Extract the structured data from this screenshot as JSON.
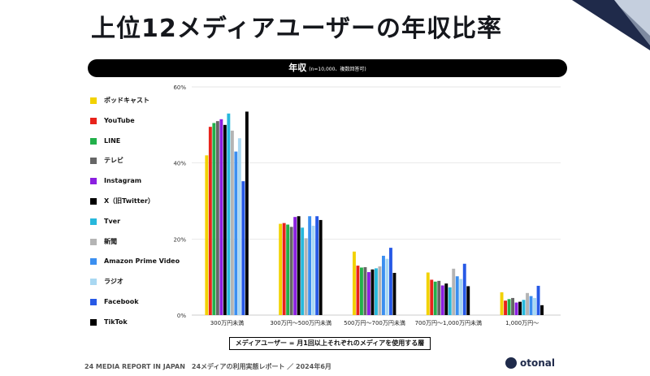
{
  "title": "上位12メディアユーザーの年収比率",
  "banner": {
    "main": "年収",
    "sub": "(n=10,000、複数回答可)"
  },
  "caption": "メディアユーザー = 月1回以上それぞれのメディアを使用する層",
  "footer": "24 MEDIA REPORT IN JAPAN　24メディアの利用実態レポート ／ 2024年6月",
  "brand": "otonal",
  "chart_data": {
    "type": "bar",
    "categories": [
      "300万円未満",
      "300万円〜500万円未満",
      "500万円〜700万円未満",
      "700万円〜1,000万円未満",
      "1,000万円〜"
    ],
    "yticks": [
      "0%",
      "20%",
      "40%",
      "60%"
    ],
    "ylim": [
      0,
      60
    ],
    "grid": true,
    "legend_position": "left",
    "series": [
      {
        "name": "ポッドキャスト",
        "color": "#f2d200",
        "values": [
          42,
          24,
          16.7,
          11.2,
          6
        ]
      },
      {
        "name": "YouTube",
        "color": "#e8231b",
        "values": [
          49.5,
          24.2,
          13,
          9.3,
          3.8
        ]
      },
      {
        "name": "LINE",
        "color": "#22b04a",
        "values": [
          50.5,
          23.8,
          12.5,
          8.8,
          4.2
        ]
      },
      {
        "name": "テレビ",
        "color": "#666666",
        "values": [
          51,
          23.2,
          12.6,
          9,
          4.5
        ]
      },
      {
        "name": "Instagram",
        "color": "#8b1fe0",
        "values": [
          51.5,
          25.8,
          11.3,
          7.8,
          3.3
        ]
      },
      {
        "name": "X（旧Twitter）",
        "color": "#000000",
        "values": [
          50,
          26,
          12,
          8.3,
          3.5
        ]
      },
      {
        "name": "Tver",
        "color": "#27b8dc",
        "values": [
          53,
          23,
          12.3,
          7.3,
          4
        ]
      },
      {
        "name": "新聞",
        "color": "#b4b4b4",
        "values": [
          48.5,
          20.2,
          12.8,
          12.2,
          5.8
        ]
      },
      {
        "name": "Amazon Prime Video",
        "color": "#3b8ff0",
        "values": [
          43,
          26,
          15.6,
          10.2,
          5
        ]
      },
      {
        "name": "ラジオ",
        "color": "#a9d8f2",
        "values": [
          46.5,
          23.5,
          14.8,
          9.5,
          4.5
        ]
      },
      {
        "name": "Facebook",
        "color": "#2759e6",
        "values": [
          35.2,
          26,
          17.7,
          13.5,
          7.7
        ]
      },
      {
        "name": "TikTok",
        "color": "#000000",
        "values": [
          53.5,
          25,
          11.1,
          7.6,
          2.6
        ]
      }
    ]
  }
}
